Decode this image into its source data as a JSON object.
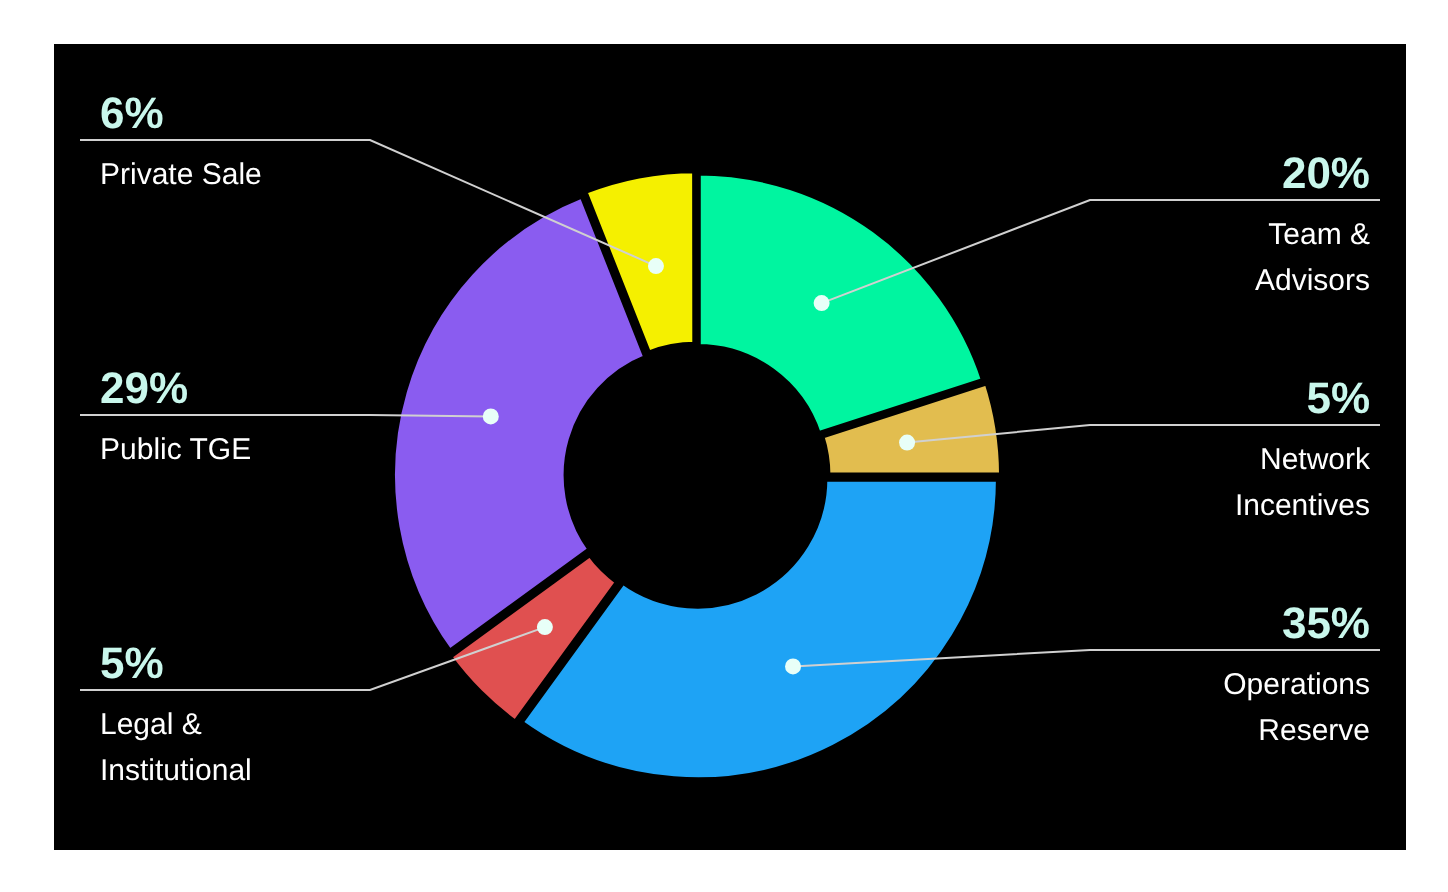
{
  "chart_data": {
    "type": "donut",
    "categories": [
      "Team & Advisors",
      "Network Incentives",
      "Operations Reserve",
      "Legal & Institutional",
      "Public TGE",
      "Private Sale"
    ],
    "values": [
      20,
      5,
      35,
      5,
      29,
      6
    ],
    "value_labels": [
      "20%",
      "5%",
      "35%",
      "5%",
      "29%",
      "6%"
    ],
    "colors": [
      "#00f5a0",
      "#e2bd4f",
      "#1ea3f5",
      "#e05050",
      "#8a5cf0",
      "#f5f000"
    ],
    "legend": false
  }
}
